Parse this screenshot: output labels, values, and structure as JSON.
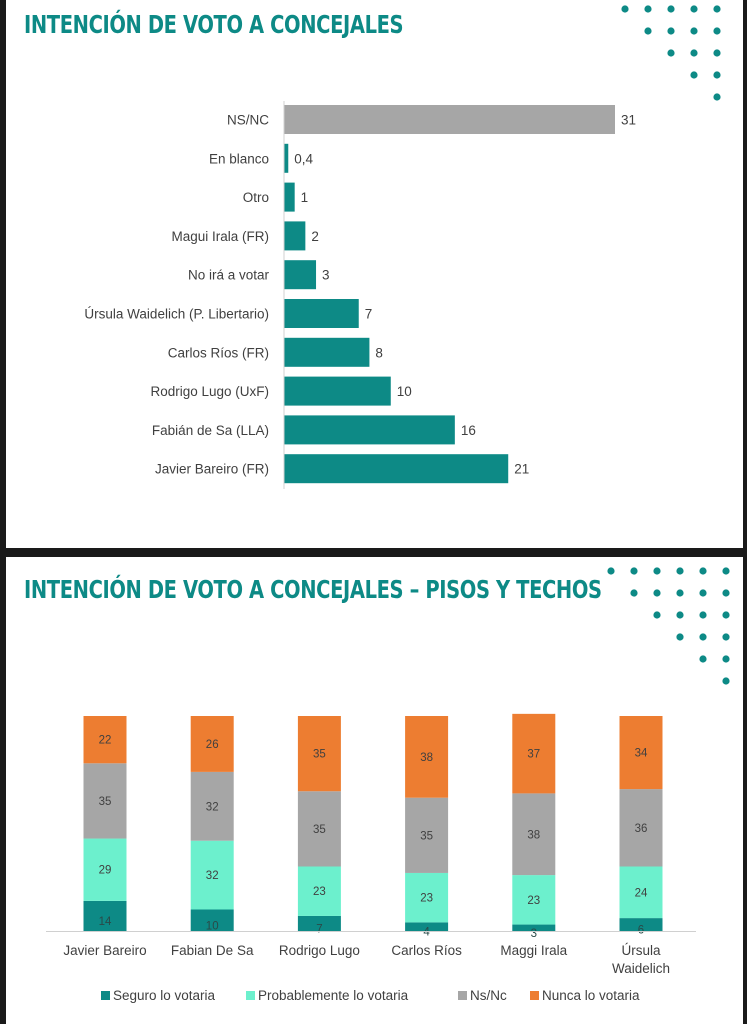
{
  "panel1": {
    "title": "INTENCIÓN DE VOTO A CONCEJALES",
    "chart_data": {
      "type": "bar",
      "orientation": "horizontal",
      "categories": [
        "NS/NC",
        "En blanco",
        "Otro",
        "Magui Irala (FR)",
        "No irá a votar",
        "Úrsula Waidelich (P. Libertario)",
        "Carlos Ríos (FR)",
        "Rodrigo Lugo (UxF)",
        "Fabián de Sa (LLA)",
        "Javier Bareiro (FR)"
      ],
      "values": [
        31,
        0.4,
        1,
        2,
        3,
        7,
        8,
        10,
        16,
        21
      ],
      "value_labels": [
        "31",
        "0,4",
        "1",
        "2",
        "3",
        "7",
        "8",
        "10",
        "16",
        "21"
      ],
      "xlim": [
        0,
        31
      ],
      "colors": [
        "#a6a6a6",
        "#0d8a86",
        "#0d8a86",
        "#0d8a86",
        "#0d8a86",
        "#0d8a86",
        "#0d8a86",
        "#0d8a86",
        "#0d8a86",
        "#0d8a86"
      ],
      "grid": false
    }
  },
  "panel2": {
    "title": "INTENCIÓN DE VOTO A CONCEJALES – PISOS Y TECHOS",
    "chart_data": {
      "type": "bar",
      "stacked": true,
      "categories": [
        [
          "Javier Bareiro"
        ],
        [
          "Fabian De Sa"
        ],
        [
          "Rodrigo Lugo"
        ],
        [
          "Carlos Ríos"
        ],
        [
          "Maggi Irala"
        ],
        [
          "Úrsula",
          "Waidelich"
        ]
      ],
      "series": [
        {
          "name": "Seguro lo votaria",
          "color": "#0d8a86",
          "values": [
            14,
            10,
            7,
            4,
            3,
            6
          ]
        },
        {
          "name": "Probablemente lo votaria",
          "color": "#6cf0cd",
          "values": [
            29,
            32,
            23,
            23,
            23,
            24
          ]
        },
        {
          "name": "Ns/Nc",
          "color": "#a6a6a6",
          "values": [
            35,
            32,
            35,
            35,
            38,
            36
          ]
        },
        {
          "name": "Nunca lo votaria",
          "color": "#ed7d31",
          "values": [
            22,
            26,
            35,
            38,
            37,
            34
          ]
        }
      ],
      "ylim": [
        0,
        100
      ],
      "legend": "bottom",
      "grid": false
    }
  },
  "decor": {
    "dots_color": "#0d8a86",
    "dots_icon": "dot-grid-icon"
  }
}
